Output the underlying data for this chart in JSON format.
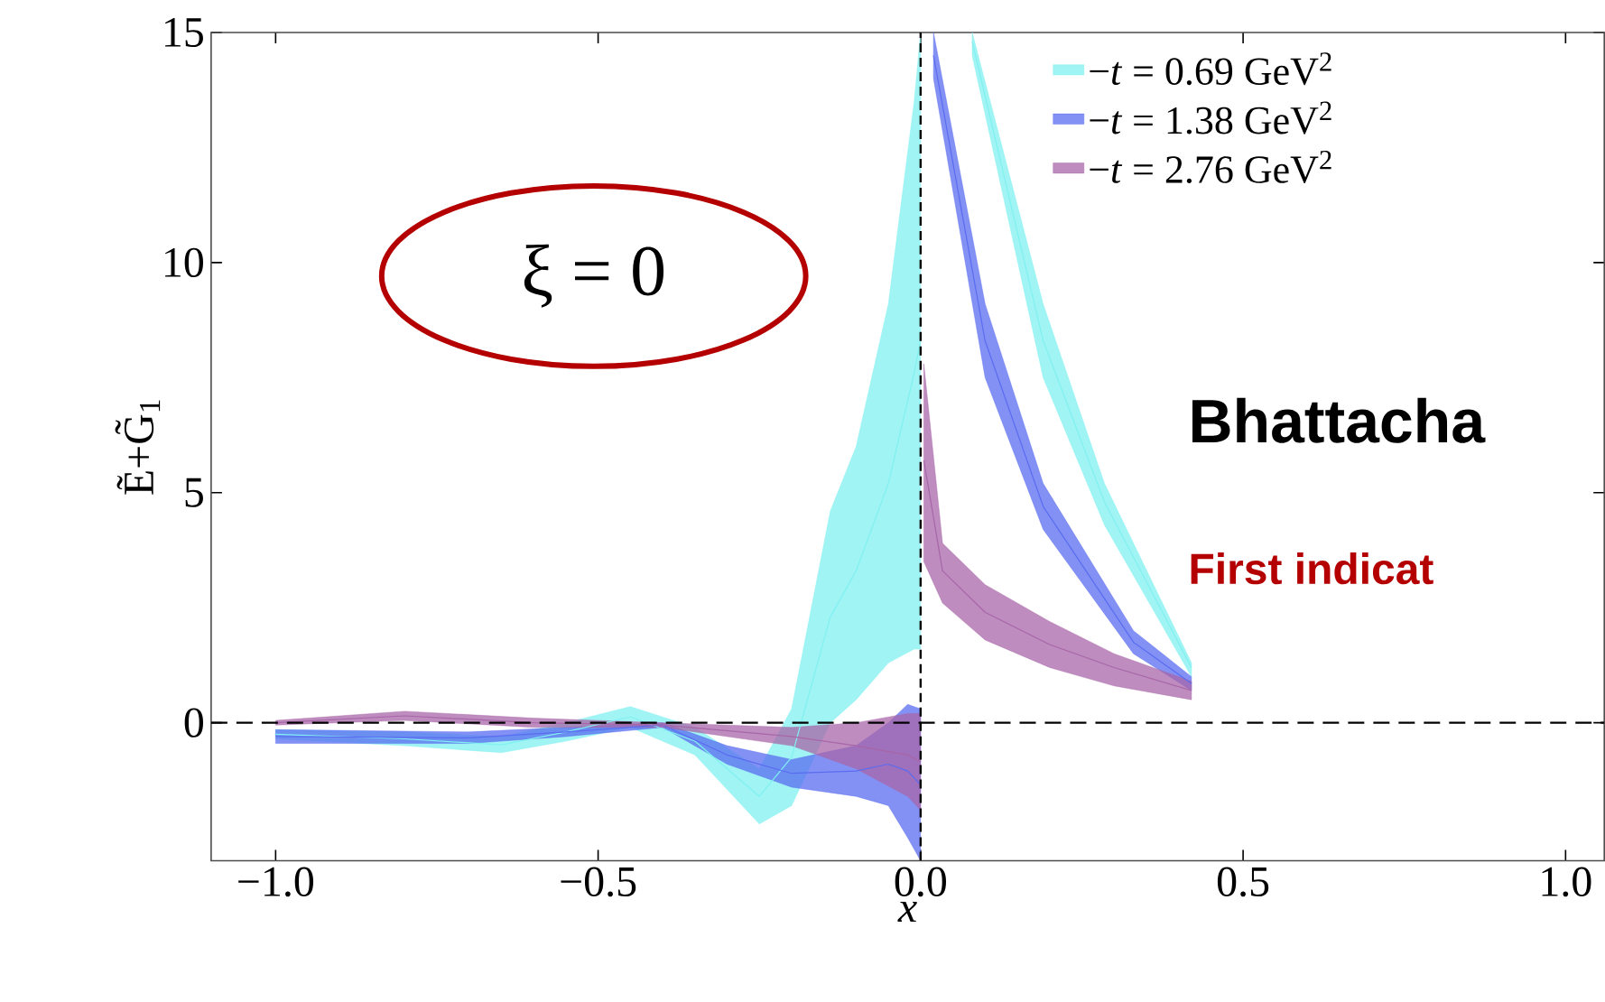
{
  "chart_data": {
    "type": "line",
    "xlabel": "x",
    "ylabel": "Ẽ+G̃$_{1}$",
    "xlim": [
      -1.1,
      1.06
    ],
    "ylim": [
      -3,
      15
    ],
    "xticks": [
      {
        "value": -1.0,
        "label": "−1.0"
      },
      {
        "value": -0.5,
        "label": "−0.5"
      },
      {
        "value": 0.0,
        "label": "0.0"
      },
      {
        "value": 0.5,
        "label": "0.5"
      },
      {
        "value": 1.0,
        "label": "1.0"
      }
    ],
    "yticks": [
      0,
      5,
      10,
      15
    ],
    "legend": "top right",
    "ref_lines": [
      {
        "axis": "x",
        "value": 0,
        "line_style": "dashed"
      },
      {
        "axis": "y",
        "value": 0,
        "line_style": "dashed"
      }
    ],
    "annotations": [
      "ξ = 0",
      "Bhattacha",
      "First indicat"
    ],
    "series": [
      {
        "name": "−*t* = 0.69 GeV$^{2}$",
        "color": "#80f0f0",
        "x": [
          -1.0,
          -0.8,
          -0.65,
          -0.55,
          -0.45,
          -0.35,
          -0.25,
          -0.2,
          -0.14,
          -0.1,
          -0.05,
          -0.01,
          0.0,
          0.04,
          0.08,
          0.19,
          0.285,
          0.42
        ],
        "values": [
          -0.25,
          -0.35,
          -0.48,
          -0.2,
          0.13,
          -0.4,
          -1.6,
          -0.75,
          2.3,
          3.3,
          5.2,
          7.6,
          8.3,
          null,
          14.8,
          8.3,
          4.8,
          1.2
        ],
        "lower": [
          -0.35,
          -0.5,
          -0.65,
          -0.4,
          -0.1,
          -0.7,
          -2.2,
          -1.8,
          0.0,
          0.5,
          1.3,
          1.6,
          1.6,
          null,
          14.5,
          7.5,
          4.3,
          1.0
        ],
        "upper": [
          -0.15,
          -0.2,
          -0.3,
          0.0,
          0.35,
          -0.1,
          -1.0,
          0.3,
          4.6,
          6.0,
          9.1,
          13.5,
          15,
          null,
          15,
          9.1,
          5.2,
          1.3
        ]
      },
      {
        "name": "−*t* = 1.38 GeV$^{2}$",
        "color": "#5a6cf0",
        "x": [
          -1.0,
          -0.7,
          -0.55,
          -0.4,
          -0.3,
          -0.2,
          -0.1,
          -0.05,
          -0.02,
          0.0,
          0.01,
          0.02,
          0.1,
          0.19,
          0.33,
          0.42
        ],
        "values": [
          -0.3,
          -0.33,
          -0.2,
          -0.05,
          -0.7,
          -1.1,
          -1.05,
          -0.9,
          -1.05,
          -1.35,
          null,
          14.5,
          8.3,
          4.7,
          1.75,
          0.85
        ],
        "lower": [
          -0.45,
          -0.45,
          -0.3,
          -0.1,
          -0.9,
          -1.4,
          -1.6,
          -1.8,
          -2.5,
          -3.0,
          null,
          14,
          7.5,
          4.2,
          1.5,
          0.7
        ],
        "upper": [
          -0.15,
          -0.2,
          -0.1,
          0.0,
          -0.5,
          -0.8,
          -0.5,
          0.0,
          0.4,
          0.3,
          null,
          15,
          9.1,
          5.2,
          2.0,
          1.0
        ]
      },
      {
        "name": "−*t* = 2.76 GeV$^{2}$",
        "color": "#a866a8",
        "x": [
          -1.0,
          -0.8,
          -0.6,
          -0.4,
          -0.2,
          -0.1,
          -0.02,
          0.0,
          0.002,
          0.005,
          0.034,
          0.1,
          0.2,
          0.3,
          0.42
        ],
        "values": [
          0,
          0.15,
          0,
          -0.05,
          -0.3,
          -0.5,
          -0.7,
          -0.85,
          null,
          5.7,
          3.3,
          2.4,
          1.7,
          1.2,
          0.7
        ],
        "lower": [
          -0.05,
          0.05,
          -0.1,
          -0.1,
          -0.5,
          -1.0,
          -1.6,
          -1.9,
          null,
          3.5,
          2.6,
          1.8,
          1.2,
          0.8,
          0.5
        ],
        "upper": [
          0.05,
          0.25,
          0.1,
          0.0,
          -0.1,
          0.0,
          0.2,
          0.2,
          null,
          7.8,
          3.9,
          3.0,
          2.2,
          1.5,
          0.9
        ]
      }
    ]
  }
}
